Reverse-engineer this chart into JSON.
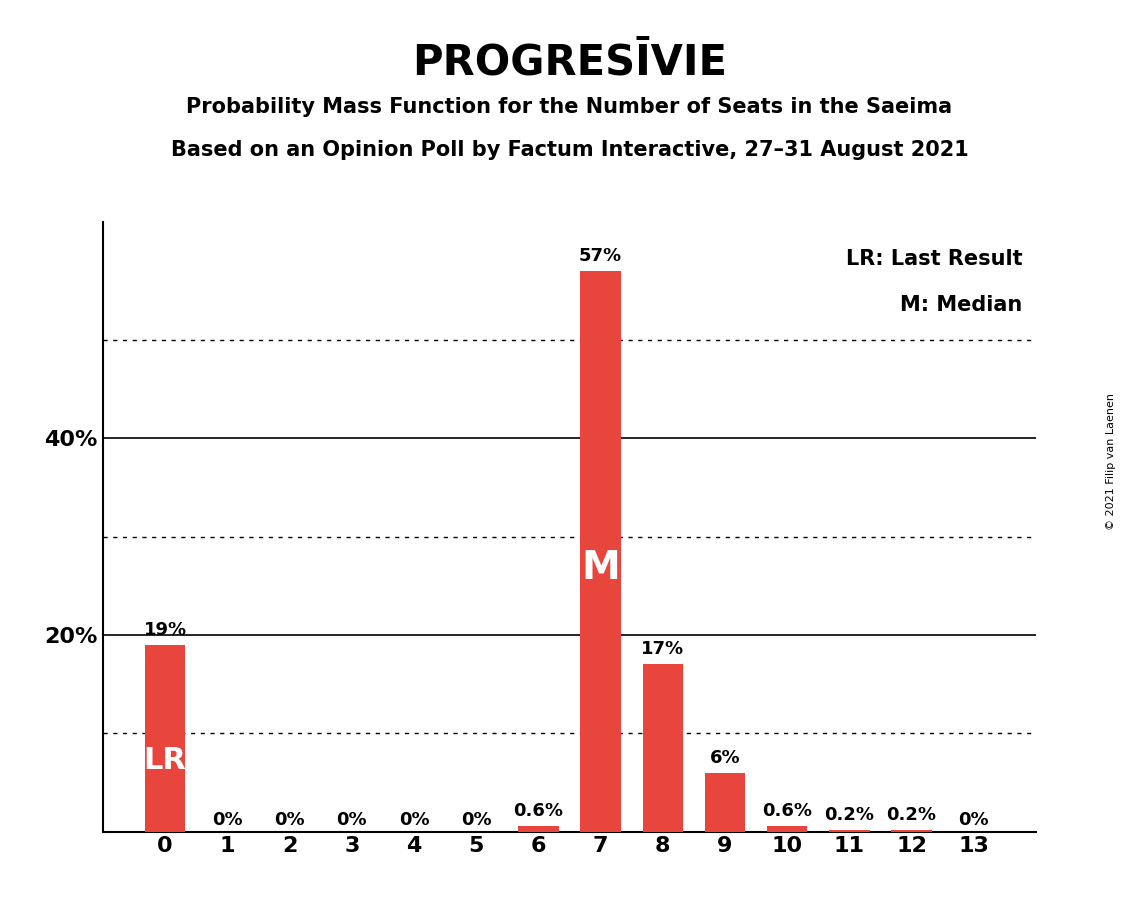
{
  "title": "PROGRESĪVIE",
  "subtitle1": "Probability Mass Function for the Number of Seats in the Saeima",
  "subtitle2": "Based on an Opinion Poll by Factum Interactive, 27–31 August 2021",
  "copyright": "© 2021 Filip van Laenen",
  "categories": [
    0,
    1,
    2,
    3,
    4,
    5,
    6,
    7,
    8,
    9,
    10,
    11,
    12,
    13
  ],
  "values": [
    19,
    0,
    0,
    0,
    0,
    0,
    0.6,
    57,
    17,
    6,
    0.6,
    0.2,
    0.2,
    0
  ],
  "labels": [
    "19%",
    "0%",
    "0%",
    "0%",
    "0%",
    "0%",
    "0.6%",
    "57%",
    "17%",
    "6%",
    "0.6%",
    "0.2%",
    "0.2%",
    "0%"
  ],
  "bar_color": "#E8453C",
  "lr_bar_index": 0,
  "median_bar_index": 7,
  "lr_label": "LR",
  "median_label": "M",
  "legend_lr": "LR: Last Result",
  "legend_m": "M: Median",
  "ylim": [
    0,
    62
  ],
  "yticks": [
    0,
    20,
    40
  ],
  "ytick_labels": [
    "",
    "20%",
    "40%"
  ],
  "dotted_gridlines": [
    10,
    30,
    50
  ],
  "solid_gridlines": [
    20,
    40
  ],
  "background_color": "#FFFFFF",
  "title_fontsize": 30,
  "subtitle_fontsize": 15,
  "label_fontsize": 13,
  "axis_fontsize": 16,
  "legend_fontsize": 15,
  "bar_width": 0.65,
  "lr_fontsize": 22,
  "m_fontsize": 28,
  "copyright_fontsize": 8
}
